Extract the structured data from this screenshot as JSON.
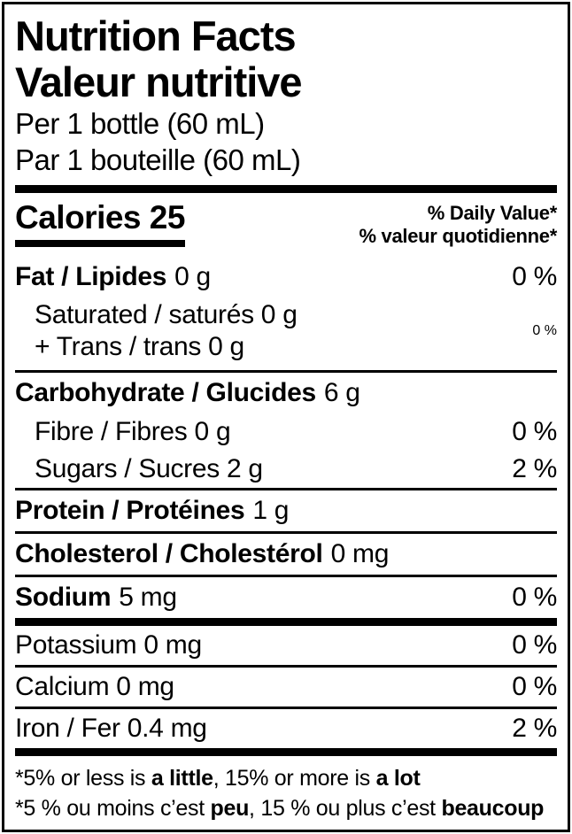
{
  "colors": {
    "ink": "#000000",
    "background": "#ffffff"
  },
  "header": {
    "title_en": "Nutrition Facts",
    "title_fr": "Valeur nutritive",
    "serving_en": "Per 1 bottle (60 mL)",
    "serving_fr": "Par 1 bouteille (60 mL)"
  },
  "calories": {
    "label": "Calories 25",
    "daily_value_en": "% Daily Value*",
    "daily_value_fr": "% valeur quotidienne*"
  },
  "nutrients": {
    "fat": {
      "name": "Fat / Lipides",
      "amount": "0 g",
      "percent": "0 %"
    },
    "saturated_trans": {
      "line1": "Saturated / saturés 0 g",
      "line2": "+ Trans / trans 0 g",
      "percent": "0 %"
    },
    "carbohydrate": {
      "name": "Carbohydrate / Glucides",
      "amount": "6 g"
    },
    "fibre": {
      "name": "Fibre / Fibres 0 g",
      "percent": "0 %"
    },
    "sugars": {
      "name": "Sugars / Sucres 2 g",
      "percent": "2 %"
    },
    "protein": {
      "name": "Protein / Protéines",
      "amount": "1 g"
    },
    "cholesterol": {
      "name": "Cholesterol / Cholestérol",
      "amount": "0 mg"
    },
    "sodium": {
      "name": "Sodium",
      "amount": "5 mg",
      "percent": "0 %"
    },
    "potassium": {
      "name": "Potassium 0 mg",
      "percent": "0 %"
    },
    "calcium": {
      "name": "Calcium 0 mg",
      "percent": "0 %"
    },
    "iron": {
      "name": "Iron / Fer 0.4 mg",
      "percent": "2 %"
    }
  },
  "footnotes": {
    "en": {
      "p1": "*5% or less is ",
      "b1": "a little",
      "p2": ", 15% or more is ",
      "b2": "a lot"
    },
    "fr": {
      "p1": "*5 % ou moins c’est ",
      "b1": "peu",
      "p2": ", 15 % ou plus c’est ",
      "b2": "beaucoup"
    }
  }
}
